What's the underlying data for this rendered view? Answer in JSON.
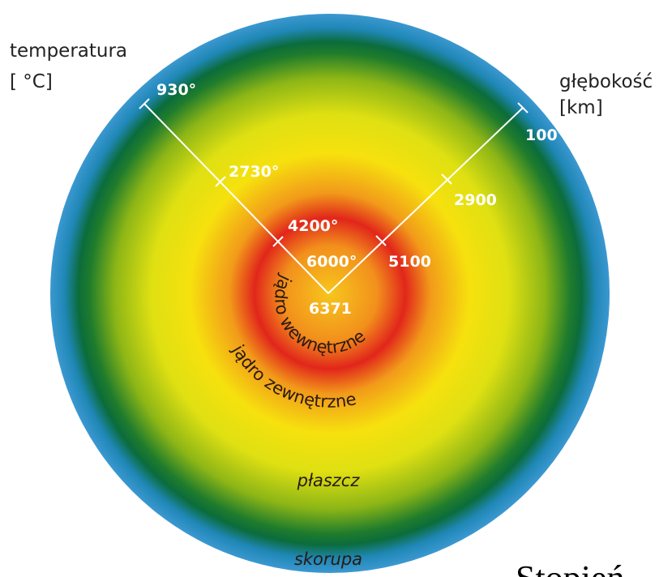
{
  "labels": {
    "temperature_title": "temperatura",
    "temperature_unit": "[ °C]",
    "depth_title": "głębokość",
    "depth_unit": "[km]"
  },
  "temperatures": [
    "930°",
    "2730°",
    "4200°",
    "6000°"
  ],
  "depths": [
    "100",
    "2900",
    "5100",
    "6371"
  ],
  "layers": {
    "inner_core": "jądro wewnętrzne",
    "outer_core": "jądro zewnętrzne",
    "mantle": "płaszcz",
    "crust": "skorupa"
  },
  "footer": "Stopień"
}
